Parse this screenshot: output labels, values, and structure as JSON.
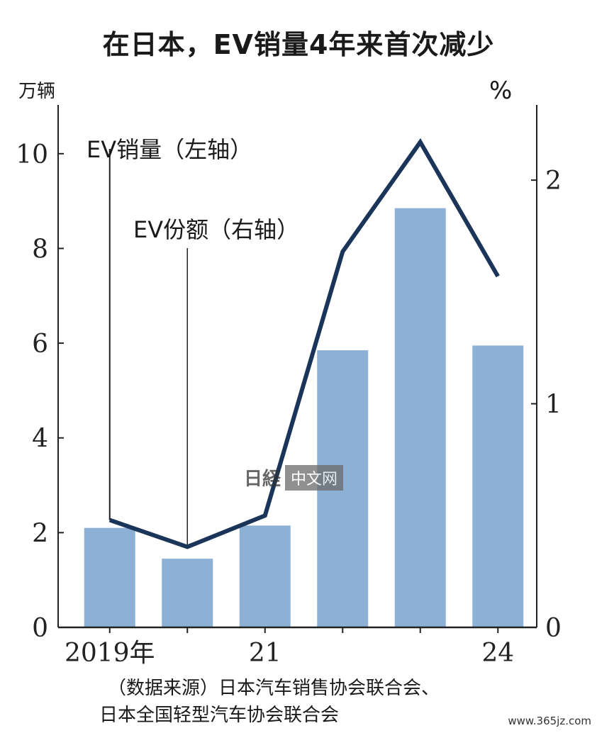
{
  "chart_data": {
    "type": "bar+line",
    "title": "在日本，EV销量4年来首次减少",
    "left_unit": "万辆",
    "right_unit": "%",
    "x_tick_labels": [
      "2019年",
      "",
      "21",
      "",
      "",
      "24"
    ],
    "years": [
      2019,
      2020,
      2021,
      2022,
      2023,
      2024
    ],
    "ylim_left": [
      0,
      11
    ],
    "ylim_right": [
      0,
      2.33
    ],
    "left_ticks": [
      0,
      2,
      4,
      6,
      8,
      10
    ],
    "right_ticks": [
      0,
      1,
      2
    ],
    "series": [
      {
        "name": "EV销量（左轴）",
        "kind": "bar",
        "axis": "left",
        "values": [
          2.1,
          1.45,
          2.15,
          5.85,
          8.85,
          5.95
        ],
        "color": "#8db0d5"
      },
      {
        "name": "EV份额（右轴）",
        "kind": "line",
        "axis": "right",
        "values": [
          0.48,
          0.36,
          0.5,
          1.68,
          2.17,
          1.57
        ],
        "color": "#1b355a"
      }
    ]
  },
  "source": {
    "line1": "（数据来源）日本汽车销售协会联合会、",
    "line2": "日本全国轻型汽车协会联合会"
  },
  "watermark": {
    "logo": "日経",
    "text": "中文网"
  },
  "site": "www.365jz.com"
}
